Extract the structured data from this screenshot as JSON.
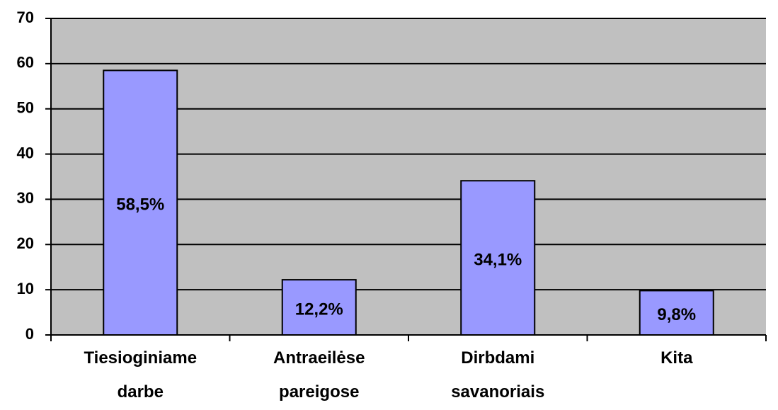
{
  "chart_data": {
    "type": "bar",
    "categories": [
      "Tiesioginiame darbe",
      "Antraeilėse pareigose",
      "Dirbdami savanoriais",
      "Kita"
    ],
    "values": [
      58.5,
      12.2,
      34.1,
      9.8
    ],
    "value_labels": [
      "58,5%",
      "12,2%",
      "34,1%",
      "9,8%"
    ],
    "color": "#9999ff",
    "plot_background": "#c0c0c0",
    "ylim": [
      0,
      70
    ],
    "yticks": [
      0,
      10,
      20,
      30,
      40,
      50,
      60,
      70
    ],
    "grid": true
  }
}
